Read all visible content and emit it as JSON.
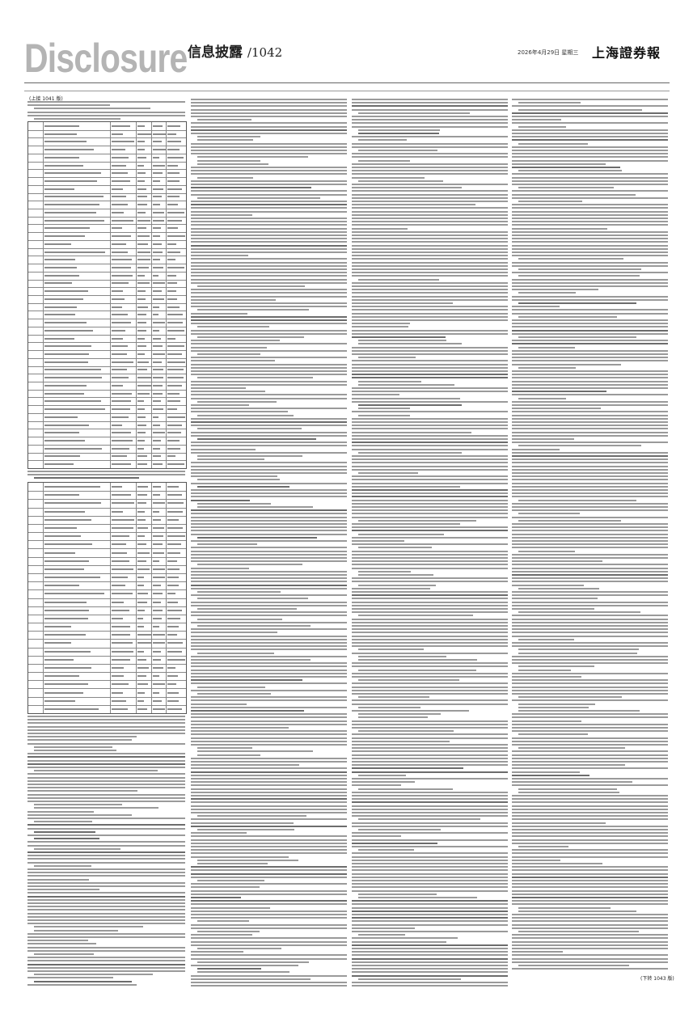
{
  "header": {
    "masthead_word": "Disclosure",
    "section_title": "信息披露",
    "page_number": "/1042",
    "date": "2026年4月29日 星期三",
    "newspaper": "上海證券報"
  },
  "continuation": {
    "from": "(上接 1041 版)",
    "to": "(下转 1043 版)"
  }
}
